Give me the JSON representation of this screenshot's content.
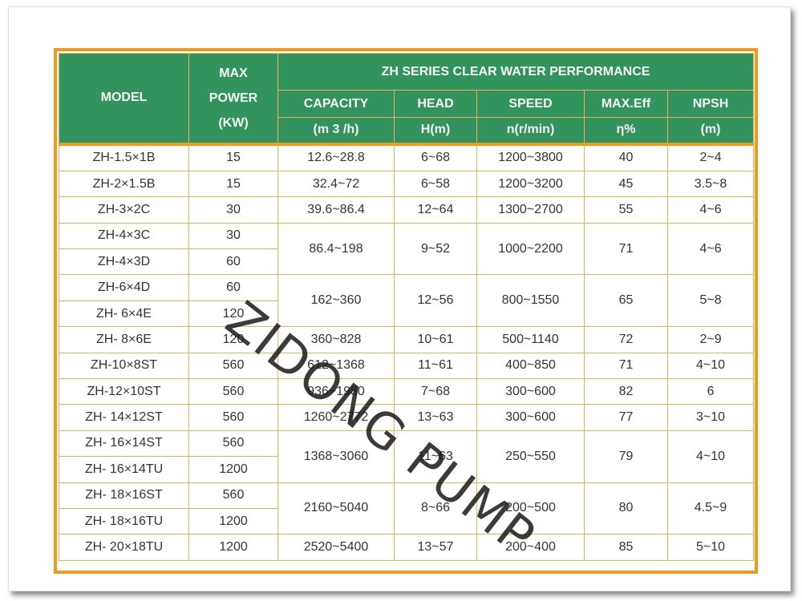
{
  "header": {
    "model": "MODEL",
    "power": [
      "MAX",
      "POWER",
      "(KW)"
    ],
    "group_title": "ZH SERIES CLEAR WATER PERFORMANCE",
    "columns": [
      {
        "label": "CAPACITY",
        "unit": "(m 3 /h)"
      },
      {
        "label": "HEAD",
        "unit": "H(m)"
      },
      {
        "label": "SPEED",
        "unit": "n(r/min)"
      },
      {
        "label": "MAX.Eff",
        "unit": "η%"
      },
      {
        "label": "NPSH",
        "unit": "(m)"
      }
    ]
  },
  "rows": [
    {
      "model": "ZH-1.5×1B",
      "power": "15",
      "capacity": "12.6~28.8",
      "head": "6~68",
      "speed": "1200~3800",
      "eff": "40",
      "npsh": "2~4"
    },
    {
      "model": "ZH-2×1.5B",
      "power": "15",
      "capacity": "32.4~72",
      "head": "6~58",
      "speed": "1200~3200",
      "eff": "45",
      "npsh": "3.5~8"
    },
    {
      "model": "ZH-3×2C",
      "power": "30",
      "capacity": "39.6~86.4",
      "head": "12~64",
      "speed": "1300~2700",
      "eff": "55",
      "npsh": "4~6"
    },
    {
      "model": "ZH-4×3C",
      "power": "30",
      "capacity": "86.4~198",
      "head": "9~52",
      "speed": "1000~2200",
      "eff": "71",
      "npsh": "4~6"
    },
    {
      "model": "ZH-4×3D",
      "power": "60"
    },
    {
      "model": "ZH-6×4D",
      "power": "60",
      "capacity": "162~360",
      "head": "12~56",
      "speed": "800~1550",
      "eff": "65",
      "npsh": "5~8"
    },
    {
      "model": "ZH- 6×4E",
      "power": "120"
    },
    {
      "model": "ZH- 8×6E",
      "power": "120",
      "capacity": "360~828",
      "head": "10~61",
      "speed": "500~1140",
      "eff": "72",
      "npsh": "2~9"
    },
    {
      "model": "ZH-10×8ST",
      "power": "560",
      "capacity": "612~1368",
      "head": "11~61",
      "speed": "400~850",
      "eff": "71",
      "npsh": "4~10"
    },
    {
      "model": "ZH-12×10ST",
      "power": "560",
      "capacity": "936~1980",
      "head": "7~68",
      "speed": "300~600",
      "eff": "82",
      "npsh": "6"
    },
    {
      "model": "ZH- 14×12ST",
      "power": "560",
      "capacity": "1260~2772",
      "head": "13~63",
      "speed": "300~600",
      "eff": "77",
      "npsh": "3~10"
    },
    {
      "model": "ZH- 16×14ST",
      "power": "560",
      "capacity": "1368~3060",
      "head": "11~63",
      "speed": "250~550",
      "eff": "79",
      "npsh": "4~10"
    },
    {
      "model": "ZH- 16×14TU",
      "power": "1200"
    },
    {
      "model": "ZH- 18×16ST",
      "power": "560",
      "capacity": "2160~5040",
      "head": "8~66",
      "speed": "200~500",
      "eff": "80",
      "npsh": "4.5~9"
    },
    {
      "model": "ZH- 18×16TU",
      "power": "1200"
    },
    {
      "model": "ZH- 20×18TU",
      "power": "1200",
      "capacity": "2520~5400",
      "head": "13~57",
      "speed": "200~400",
      "eff": "85",
      "npsh": "5~10"
    }
  ],
  "watermark": "ZIDONG PUMP",
  "colors": {
    "header_bg": "#33935f",
    "border": "#f09a1c",
    "text": "#333333"
  }
}
